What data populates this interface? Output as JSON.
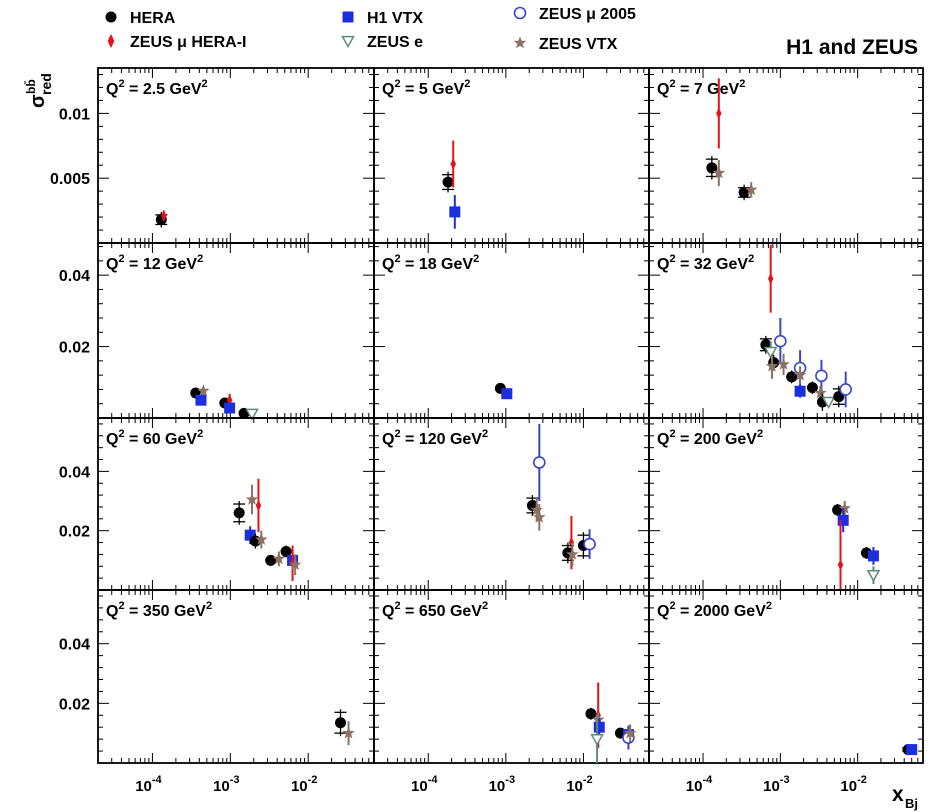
{
  "title": "H1 and ZEUS",
  "ylabel": "σ_red^bb̄",
  "xlabel": "x_Bj",
  "legend": [
    {
      "key": "hera",
      "label": "HERA",
      "marker": "circle-filled",
      "color": "#000000"
    },
    {
      "key": "zeus_mu_h1",
      "label": "ZEUS μ HERA-I",
      "marker": "diamond-filled",
      "color": "#e2141a"
    },
    {
      "key": "h1_vtx",
      "label": "H1 VTX",
      "marker": "square-filled",
      "color": "#1d2de0"
    },
    {
      "key": "zeus_e",
      "label": "ZEUS e",
      "marker": "triangle-down-open",
      "color": "#5d8a78"
    },
    {
      "key": "zeus_mu2005",
      "label": "ZEUS μ 2005",
      "marker": "circle-open",
      "color": "#3a46c8"
    },
    {
      "key": "zeus_vtx",
      "label": "ZEUS VTX",
      "marker": "star",
      "color": "#8b7262"
    }
  ],
  "x_ticks": [
    {
      "base": "10",
      "exp": "-4",
      "value": 0.0001
    },
    {
      "base": "10",
      "exp": "-3",
      "value": 0.001
    },
    {
      "base": "10",
      "exp": "-2",
      "value": 0.01
    }
  ],
  "chart_data": {
    "type": "scatter",
    "xscale": "log",
    "xlim": [
      2e-05,
      0.07
    ],
    "rows": [
      {
        "ylim": [
          0,
          0.0135
        ],
        "ticks": [
          0.005,
          0.01
        ],
        "tick_labels": [
          "0.005",
          "0.01"
        ]
      },
      {
        "ylim": [
          0,
          0.049
        ],
        "ticks": [
          0.02,
          0.04
        ],
        "tick_labels": [
          "0.02",
          "0.04"
        ]
      },
      {
        "ylim": [
          0,
          0.058
        ],
        "ticks": [
          0.02,
          0.04
        ],
        "tick_labels": [
          "0.02",
          "0.04"
        ]
      },
      {
        "ylim": [
          0,
          0.058
        ],
        "ticks": [
          0.02,
          0.04
        ],
        "tick_labels": [
          "0.02",
          "0.04"
        ]
      }
    ],
    "panels": [
      {
        "q2": "2.5",
        "row": 0,
        "col": 0,
        "points": [
          {
            "s": "hera",
            "x": 0.00013,
            "y": 0.0018,
            "ey": 0.0006,
            "xe": true
          },
          {
            "s": "zeus_mu_h1",
            "x": 0.00014,
            "y": 0.0021,
            "ey": 0.0004
          }
        ]
      },
      {
        "q2": "5",
        "row": 0,
        "col": 1,
        "points": [
          {
            "s": "hera",
            "x": 0.00018,
            "y": 0.0047,
            "ey": 0.0008,
            "xe": true
          },
          {
            "s": "zeus_mu_h1",
            "x": 0.00021,
            "y": 0.0061,
            "ey": 0.0018
          },
          {
            "s": "h1_vtx",
            "x": 0.00022,
            "y": 0.0024,
            "ey": 0.0013
          }
        ]
      },
      {
        "q2": "7",
        "row": 0,
        "col": 2,
        "points": [
          {
            "s": "hera",
            "x": 0.00013,
            "y": 0.0058,
            "ey": 0.0009,
            "xe": true
          },
          {
            "s": "zeus_mu_h1",
            "x": 0.00016,
            "y": 0.01,
            "ey": 0.0027
          },
          {
            "s": "zeus_vtx",
            "x": 0.00016,
            "y": 0.0054,
            "ey": 0.001
          },
          {
            "s": "hera",
            "x": 0.00034,
            "y": 0.0039,
            "ey": 0.0006,
            "xe": true
          },
          {
            "s": "zeus_vtx",
            "x": 0.00042,
            "y": 0.0041,
            "ey": 0.0006
          }
        ]
      },
      {
        "q2": "12",
        "row": 1,
        "col": 0,
        "points": [
          {
            "s": "hera",
            "x": 0.00036,
            "y": 0.007,
            "ey": 0.001
          },
          {
            "s": "h1_vtx",
            "x": 0.00042,
            "y": 0.005,
            "ey": 0.0015
          },
          {
            "s": "zeus_vtx",
            "x": 0.00045,
            "y": 0.0076,
            "ey": 0.001
          },
          {
            "s": "hera",
            "x": 0.00085,
            "y": 0.0042,
            "ey": 0.0008
          },
          {
            "s": "zeus_mu_h1",
            "x": 0.00098,
            "y": 0.005,
            "ey": 0.0018
          },
          {
            "s": "h1_vtx",
            "x": 0.00098,
            "y": 0.0028,
            "ey": 0.001
          },
          {
            "s": "hera",
            "x": 0.0015,
            "y": 0.0013,
            "ey": 0.0008
          },
          {
            "s": "zeus_e",
            "x": 0.0019,
            "y": 0.0012,
            "ey": 0.0008
          }
        ]
      },
      {
        "q2": "18",
        "row": 1,
        "col": 1,
        "points": [
          {
            "s": "hera",
            "x": 0.00085,
            "y": 0.0083,
            "ey": 0.0008
          },
          {
            "s": "h1_vtx",
            "x": 0.00103,
            "y": 0.0068,
            "ey": 0.0008
          }
        ]
      },
      {
        "q2": "32",
        "row": 1,
        "col": 2,
        "points": [
          {
            "s": "zeus_mu_h1",
            "x": 0.00075,
            "y": 0.039,
            "ey": 0.0095
          },
          {
            "s": "hera",
            "x": 0.00065,
            "y": 0.0205,
            "ey": 0.0025,
            "xe": true
          },
          {
            "s": "zeus_e",
            "x": 0.00075,
            "y": 0.0185,
            "ey": 0.003
          },
          {
            "s": "hera",
            "x": 0.00082,
            "y": 0.0155,
            "ey": 0.0022
          },
          {
            "s": "zeus_vtx",
            "x": 0.00078,
            "y": 0.0145,
            "ey": 0.0035
          },
          {
            "s": "zeus_mu2005",
            "x": 0.001,
            "y": 0.0215,
            "ey": 0.0065
          },
          {
            "s": "zeus_vtx",
            "x": 0.0011,
            "y": 0.015,
            "ey": 0.003
          },
          {
            "s": "hera",
            "x": 0.0014,
            "y": 0.0115,
            "ey": 0.0018
          },
          {
            "s": "zeus_mu2005",
            "x": 0.0018,
            "y": 0.014,
            "ey": 0.005
          },
          {
            "s": "zeus_vtx",
            "x": 0.0018,
            "y": 0.012,
            "ey": 0.0025
          },
          {
            "s": "h1_vtx",
            "x": 0.0018,
            "y": 0.0075,
            "ey": 0.0018
          },
          {
            "s": "hera",
            "x": 0.0026,
            "y": 0.0085,
            "ey": 0.0018
          },
          {
            "s": "zeus_mu2005",
            "x": 0.0034,
            "y": 0.0118,
            "ey": 0.0045
          },
          {
            "s": "zeus_vtx",
            "x": 0.0033,
            "y": 0.007,
            "ey": 0.002
          },
          {
            "s": "hera",
            "x": 0.0035,
            "y": 0.0045,
            "ey": 0.0025
          },
          {
            "s": "zeus_e",
            "x": 0.0042,
            "y": 0.0045,
            "ey": 0.0012
          },
          {
            "s": "hera",
            "x": 0.0057,
            "y": 0.006,
            "ey": 0.003,
            "xe": true
          },
          {
            "s": "zeus_mu2005",
            "x": 0.007,
            "y": 0.008,
            "ey": 0.005
          }
        ]
      },
      {
        "q2": "60",
        "row": 2,
        "col": 0,
        "points": [
          {
            "s": "hera",
            "x": 0.0013,
            "y": 0.026,
            "ey": 0.004,
            "xe": true
          },
          {
            "s": "zeus_vtx",
            "x": 0.0019,
            "y": 0.0305,
            "ey": 0.005
          },
          {
            "s": "zeus_mu_h1",
            "x": 0.0023,
            "y": 0.0285,
            "ey": 0.009
          },
          {
            "s": "h1_vtx",
            "x": 0.0018,
            "y": 0.0185,
            "ey": 0.003
          },
          {
            "s": "hera",
            "x": 0.0021,
            "y": 0.0165,
            "ey": 0.0025
          },
          {
            "s": "zeus_vtx",
            "x": 0.0025,
            "y": 0.017,
            "ey": 0.003
          },
          {
            "s": "hera",
            "x": 0.0033,
            "y": 0.01,
            "ey": 0.0015
          },
          {
            "s": "zeus_vtx",
            "x": 0.0042,
            "y": 0.0105,
            "ey": 0.0025
          },
          {
            "s": "hera",
            "x": 0.0052,
            "y": 0.013,
            "ey": 0.002
          },
          {
            "s": "h1_vtx",
            "x": 0.0063,
            "y": 0.01,
            "ey": 0.003
          },
          {
            "s": "zeus_mu_h1",
            "x": 0.0063,
            "y": 0.009,
            "ey": 0.006
          },
          {
            "s": "zeus_vtx",
            "x": 0.0068,
            "y": 0.0085,
            "ey": 0.0035
          }
        ]
      },
      {
        "q2": "120",
        "row": 2,
        "col": 1,
        "points": [
          {
            "s": "zeus_mu2005",
            "x": 0.0027,
            "y": 0.043,
            "ey": 0.013
          },
          {
            "s": "hera",
            "x": 0.0022,
            "y": 0.0285,
            "ey": 0.0035,
            "xe": true
          },
          {
            "s": "zeus_vtx",
            "x": 0.0025,
            "y": 0.027,
            "ey": 0.004
          },
          {
            "s": "zeus_vtx",
            "x": 0.0027,
            "y": 0.0245,
            "ey": 0.0045
          },
          {
            "s": "zeus_mu_h1",
            "x": 0.007,
            "y": 0.016,
            "ey": 0.009
          },
          {
            "s": "hera",
            "x": 0.0063,
            "y": 0.0125,
            "ey": 0.0035,
            "xe": true
          },
          {
            "s": "zeus_vtx",
            "x": 0.0072,
            "y": 0.012,
            "ey": 0.004
          },
          {
            "s": "hera",
            "x": 0.01,
            "y": 0.015,
            "ey": 0.0045,
            "xe": true
          },
          {
            "s": "zeus_mu2005",
            "x": 0.012,
            "y": 0.0155,
            "ey": 0.005
          }
        ]
      },
      {
        "q2": "200",
        "row": 2,
        "col": 2,
        "points": [
          {
            "s": "hera",
            "x": 0.0055,
            "y": 0.027,
            "ey": 0.002
          },
          {
            "s": "zeus_vtx",
            "x": 0.0068,
            "y": 0.0275,
            "ey": 0.0025
          },
          {
            "s": "h1_vtx",
            "x": 0.0065,
            "y": 0.0235,
            "ey": 0.004
          },
          {
            "s": "zeus_mu_h1",
            "x": 0.006,
            "y": 0.0085,
            "ey": 0.015
          },
          {
            "s": "hera",
            "x": 0.013,
            "y": 0.0125,
            "ey": 0.002
          },
          {
            "s": "h1_vtx",
            "x": 0.016,
            "y": 0.0115,
            "ey": 0.003
          },
          {
            "s": "zeus_e",
            "x": 0.016,
            "y": 0.005,
            "ey": 0.003
          }
        ]
      },
      {
        "q2": "350",
        "row": 3,
        "col": 0,
        "points": [
          {
            "s": "hera",
            "x": 0.026,
            "y": 0.0135,
            "ey": 0.0045,
            "xe": true
          },
          {
            "s": "zeus_vtx",
            "x": 0.033,
            "y": 0.01,
            "ey": 0.004
          }
        ]
      },
      {
        "q2": "650",
        "row": 3,
        "col": 1,
        "points": [
          {
            "s": "hera",
            "x": 0.0125,
            "y": 0.0165,
            "ey": 0.002
          },
          {
            "s": "zeus_mu_h1",
            "x": 0.0155,
            "y": 0.016,
            "ey": 0.011
          },
          {
            "s": "zeus_vtx",
            "x": 0.0155,
            "y": 0.0145,
            "ey": 0.0025
          },
          {
            "s": "h1_vtx",
            "x": 0.016,
            "y": 0.012,
            "ey": 0.003
          },
          {
            "s": "zeus_e",
            "x": 0.015,
            "y": 0.008,
            "ey": 0.008
          },
          {
            "s": "hera",
            "x": 0.03,
            "y": 0.01,
            "ey": 0.0015
          },
          {
            "s": "h1_vtx",
            "x": 0.038,
            "y": 0.0095,
            "ey": 0.003
          },
          {
            "s": "zeus_mu2005",
            "x": 0.038,
            "y": 0.0085,
            "ey": 0.004
          },
          {
            "s": "zeus_vtx",
            "x": 0.04,
            "y": 0.01,
            "ey": 0.003
          }
        ]
      },
      {
        "q2": "2000",
        "row": 3,
        "col": 2,
        "points": [
          {
            "s": "hera",
            "x": 0.045,
            "y": 0.0045,
            "ey": 0.0015,
            "xe": true
          },
          {
            "s": "h1_vtx",
            "x": 0.05,
            "y": 0.0045,
            "ey": 0.001
          }
        ]
      }
    ]
  }
}
